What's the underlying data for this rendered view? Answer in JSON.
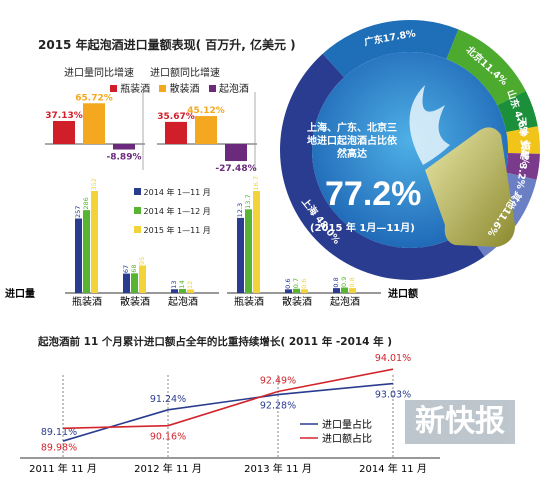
{
  "header": {
    "title": "2015 年起泡酒进口量额表现( 百万升, 亿美元 )",
    "growth_vol_label": "进口量同比增速",
    "growth_val_label": "进口额同比增速"
  },
  "legend_types": [
    "瓶装酒",
    "散装酒",
    "起泡酒"
  ],
  "legend_periods": [
    "2014 年 1—11 月",
    "2014 年 1—12 月",
    "2015 年 1—11 月"
  ],
  "axis": {
    "volume": "进口量",
    "value": "进口额"
  },
  "pie_text": {
    "main": "上海、广东、北京三地进口起泡酒占比依然高达",
    "pct": "77.2%",
    "period": "(2015 年 1月—11月)"
  },
  "line_chart_title": "起泡酒前 11 个月累计进口额占全年的比重持续增长( 2011 年 -2014 年 )",
  "watermark": "新快报",
  "colors": {
    "p2014_11": "#2a3c8f",
    "p2014_12": "#57b531",
    "p2015_11": "#f2d43a",
    "bottled": "#d11f2a",
    "bulk": "#f3a81f",
    "sparkling": "#6b2a7c",
    "vol_line": "#2a3c8f",
    "val_line": "#d3252c"
  },
  "chart_data": [
    {
      "type": "bar",
      "name": "growth_volume",
      "categories": [
        "瓶装酒",
        "散装酒",
        "起泡酒"
      ],
      "values": [
        37.13,
        65.72,
        -8.89
      ],
      "labels": [
        "37.13%",
        "65.72%",
        "-8.89%"
      ]
    },
    {
      "type": "bar",
      "name": "growth_value",
      "categories": [
        "瓶装酒",
        "散装酒",
        "起泡酒"
      ],
      "values": [
        35.67,
        45.12,
        -27.48
      ],
      "labels": [
        "35.67%",
        "45.12%",
        "-27.48%"
      ]
    },
    {
      "type": "bar",
      "name": "import_volume",
      "categories": [
        "瓶装酒",
        "散装酒",
        "起泡酒"
      ],
      "series": [
        {
          "name": "2014 年 1—11 月",
          "values": [
            257,
            67,
            13
          ]
        },
        {
          "name": "2014 年 1—12 月",
          "values": [
            286,
            68,
            14
          ]
        },
        {
          "name": "2015 年 1—11 月",
          "values": [
            352,
            95,
            12
          ]
        }
      ]
    },
    {
      "type": "bar",
      "name": "import_value",
      "categories": [
        "瓶装酒",
        "散装酒",
        "起泡酒"
      ],
      "series": [
        {
          "name": "2014 年 1—11 月",
          "values": [
            12.3,
            0.6,
            0.8
          ]
        },
        {
          "name": "2014 年 1—12 月",
          "values": [
            13.7,
            0.7,
            0.9
          ]
        },
        {
          "name": "2015 年 1—11 月",
          "values": [
            16.7,
            0.6,
            0.8
          ]
        }
      ]
    },
    {
      "type": "pie",
      "slices": [
        {
          "label": "上海 48.0%",
          "value": 48.0,
          "color": "#2a3c8f"
        },
        {
          "label": "广东17.8%",
          "value": 17.8,
          "color": "#1f6fb8"
        },
        {
          "label": "北京11.4%",
          "value": 11.4,
          "color": "#4caa2e"
        },
        {
          "label": "山东 4.6%",
          "value": 4.6,
          "color": "#1b8f3a"
        },
        {
          "label": "天津 3.4%",
          "value": 3.4,
          "color": "#f0c419"
        },
        {
          "label": "福建 3.2%",
          "value": 3.2,
          "color": "#7a3b8c"
        },
        {
          "label": "其他11.6%",
          "value": 11.6,
          "color": "#6a7fc4"
        }
      ]
    },
    {
      "type": "line",
      "x": [
        "2011 年 11 月",
        "2012 年 11 月",
        "2013 年 11 月",
        "2014 年 11 月"
      ],
      "series": [
        {
          "name": "进口量占比",
          "values": [
            89.11,
            91.24,
            92.28,
            93.03
          ],
          "labels": [
            "89.11%",
            "91.24%",
            "92.28%",
            "93.03%"
          ]
        },
        {
          "name": "进口额占比",
          "values": [
            89.98,
            90.16,
            92.49,
            94.01
          ],
          "labels": [
            "89.98%",
            "90.16%",
            "92.49%",
            "94.01%"
          ]
        }
      ]
    }
  ]
}
